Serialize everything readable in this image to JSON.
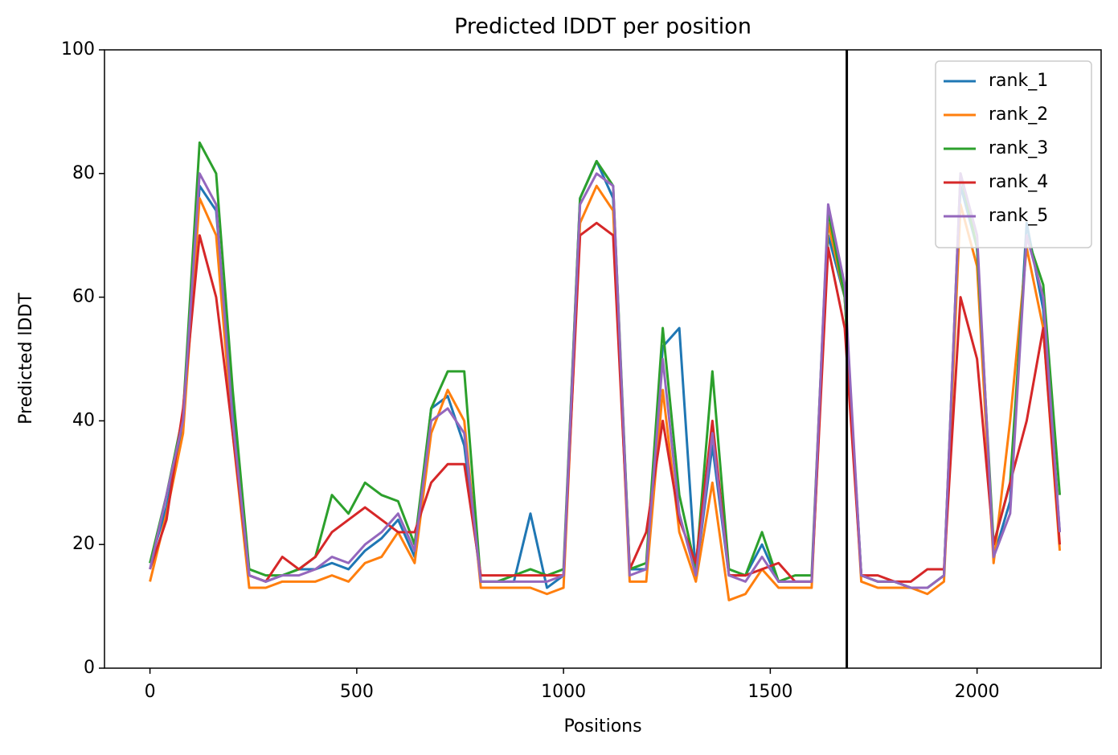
{
  "chart_data": {
    "type": "line",
    "title": "Predicted lDDT per position",
    "x_label": "Positions",
    "y_label": "Predicted lDDT",
    "xlim": [
      -110,
      2300
    ],
    "ylim": [
      0,
      100
    ],
    "xticks": [
      0,
      500,
      1000,
      1500,
      2000
    ],
    "yticks": [
      0,
      20,
      40,
      60,
      80,
      100
    ],
    "grid": false,
    "legend": "upper right",
    "vline": 1685,
    "vline_color": "#000000",
    "x": [
      0,
      40,
      80,
      120,
      160,
      200,
      240,
      280,
      320,
      360,
      400,
      440,
      480,
      520,
      560,
      600,
      640,
      680,
      720,
      760,
      800,
      840,
      880,
      920,
      960,
      1000,
      1040,
      1080,
      1120,
      1160,
      1200,
      1240,
      1280,
      1320,
      1360,
      1400,
      1440,
      1480,
      1520,
      1560,
      1600,
      1640,
      1680,
      1720,
      1760,
      1800,
      1840,
      1880,
      1920,
      1960,
      2000,
      2040,
      2080,
      2120,
      2160,
      2200
    ],
    "series": [
      {
        "name": "rank_1",
        "color": "#1f77b4",
        "values": [
          17,
          26,
          39,
          78,
          74,
          42,
          15,
          14,
          15,
          16,
          16,
          17,
          16,
          19,
          21,
          24,
          18,
          42,
          44,
          36,
          14,
          14,
          14,
          25,
          13,
          15,
          76,
          82,
          76,
          16,
          16,
          52,
          55,
          15,
          36,
          15,
          15,
          20,
          14,
          14,
          14,
          70,
          60,
          15,
          14,
          14,
          13,
          13,
          15,
          78,
          68,
          18,
          27,
          72,
          58,
          22
        ]
      },
      {
        "name": "rank_2",
        "color": "#ff7f0e",
        "values": [
          14,
          25,
          38,
          76,
          70,
          38,
          13,
          13,
          14,
          14,
          14,
          15,
          14,
          17,
          18,
          22,
          17,
          38,
          45,
          40,
          13,
          13,
          13,
          13,
          12,
          13,
          72,
          78,
          74,
          14,
          14,
          45,
          22,
          14,
          30,
          11,
          12,
          16,
          13,
          13,
          13,
          72,
          60,
          14,
          13,
          13,
          13,
          12,
          14,
          75,
          65,
          17,
          40,
          68,
          55,
          19
        ]
      },
      {
        "name": "rank_3",
        "color": "#2ca02c",
        "values": [
          17,
          28,
          41,
          85,
          80,
          45,
          16,
          15,
          15,
          16,
          18,
          28,
          25,
          30,
          28,
          27,
          20,
          42,
          48,
          48,
          14,
          14,
          15,
          16,
          15,
          16,
          76,
          82,
          78,
          16,
          17,
          55,
          28,
          16,
          48,
          16,
          15,
          22,
          14,
          15,
          15,
          74,
          60,
          15,
          14,
          14,
          13,
          13,
          15,
          80,
          68,
          20,
          30,
          70,
          62,
          28
        ]
      },
      {
        "name": "rank_4",
        "color": "#d62728",
        "values": [
          16,
          24,
          42,
          70,
          60,
          38,
          15,
          14,
          18,
          16,
          18,
          22,
          24,
          26,
          24,
          22,
          22,
          30,
          33,
          33,
          15,
          15,
          15,
          15,
          15,
          15,
          70,
          72,
          70,
          16,
          22,
          40,
          24,
          17,
          40,
          15,
          15,
          16,
          17,
          14,
          14,
          68,
          55,
          15,
          15,
          14,
          14,
          16,
          16,
          60,
          50,
          20,
          30,
          40,
          55,
          20
        ]
      },
      {
        "name": "rank_5",
        "color": "#9467bd",
        "values": [
          16,
          28,
          40,
          80,
          75,
          40,
          15,
          14,
          15,
          15,
          16,
          18,
          17,
          20,
          22,
          25,
          19,
          40,
          42,
          38,
          14,
          14,
          14,
          14,
          14,
          15,
          75,
          80,
          78,
          15,
          16,
          50,
          25,
          15,
          38,
          15,
          14,
          18,
          14,
          14,
          14,
          75,
          62,
          15,
          14,
          14,
          13,
          13,
          15,
          80,
          70,
          18,
          25,
          70,
          60,
          22
        ]
      }
    ]
  }
}
